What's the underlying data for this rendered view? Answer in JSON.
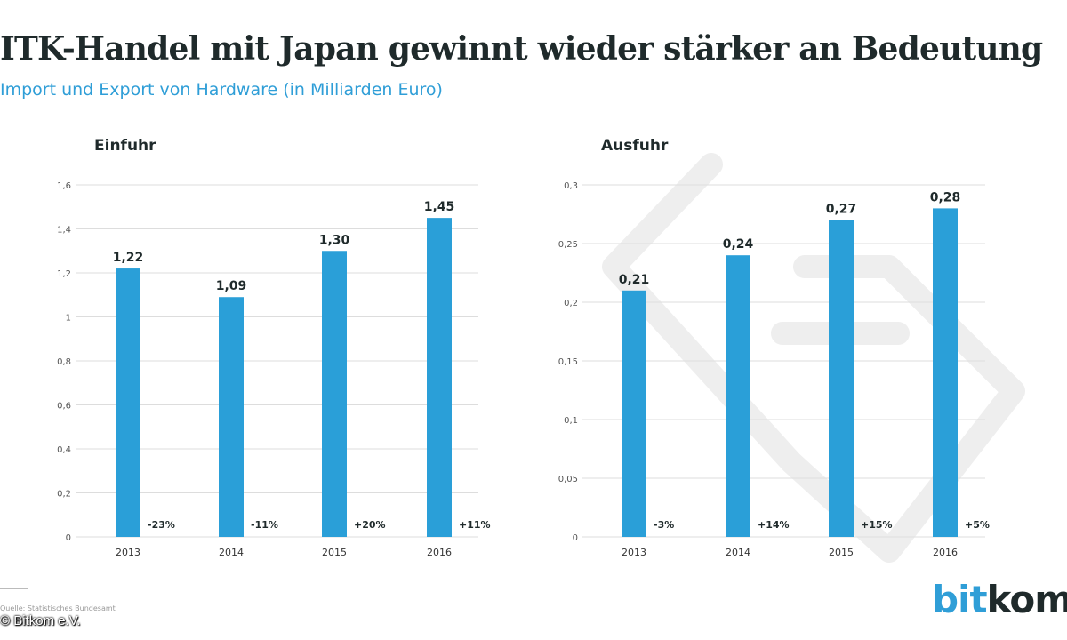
{
  "header": {
    "title": "ITK-Handel mit Japan gewinnt wieder stärker an Bedeutung",
    "subtitle": "Import und Export von Hardware (in Milliarden Euro)"
  },
  "footer": {
    "source": "Quelle: Statistisches Bundesamt",
    "copyright": "© Bitkom e.V.",
    "logo_part1": "bit",
    "logo_part2": "kom"
  },
  "colors": {
    "bar": "#2a9fd8",
    "title": "#1f2a2b",
    "subtitle": "#2f9ed7",
    "grid": "#dddddd",
    "background_arrow": "#eeeeee"
  },
  "icons": [
    "background-double-arrow-icon"
  ],
  "chart_data": [
    {
      "type": "bar",
      "title": "Einfuhr",
      "categories": [
        "2013",
        "2014",
        "2015",
        "2016"
      ],
      "values": [
        1.22,
        1.09,
        1.3,
        1.45
      ],
      "value_labels": [
        "1,22",
        "1,09",
        "1,30",
        "1,45"
      ],
      "change_labels": [
        "-23%",
        "-11%",
        "+20%",
        "+11%"
      ],
      "ylim": [
        0,
        1.6
      ],
      "yticks": [
        0,
        0.2,
        0.4,
        0.6,
        0.8,
        1,
        1.2,
        1.4,
        1.6
      ],
      "ytick_labels": [
        "0",
        "0,2",
        "0,4",
        "0,6",
        "0,8",
        "1",
        "1,2",
        "1,4",
        "1,6"
      ],
      "grid": true
    },
    {
      "type": "bar",
      "title": "Ausfuhr",
      "categories": [
        "2013",
        "2014",
        "2015",
        "2016"
      ],
      "values": [
        0.21,
        0.24,
        0.27,
        0.28
      ],
      "value_labels": [
        "0,21",
        "0,24",
        "0,27",
        "0,28"
      ],
      "change_labels": [
        "-3%",
        "+14%",
        "+15%",
        "+5%"
      ],
      "ylim": [
        0,
        0.3
      ],
      "yticks": [
        0,
        0.05,
        0.1,
        0.15,
        0.2,
        0.25,
        0.3
      ],
      "ytick_labels": [
        "0",
        "0,05",
        "0,1",
        "0,15",
        "0,2",
        "0,25",
        "0,3"
      ],
      "grid": true
    }
  ]
}
